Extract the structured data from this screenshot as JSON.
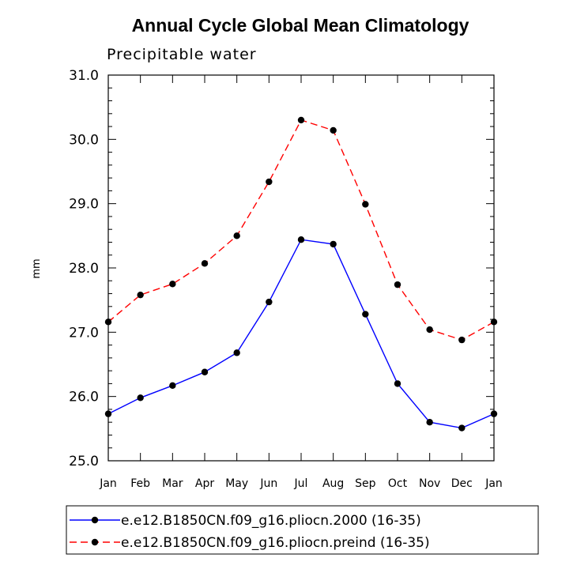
{
  "chart_data": {
    "type": "line",
    "title": "Annual Cycle Global Mean Climatology",
    "subtitle": "Precipitable water",
    "xlabel": "",
    "ylabel": "mm",
    "categories": [
      "Jan",
      "Feb",
      "Mar",
      "Apr",
      "May",
      "Jun",
      "Jul",
      "Aug",
      "Sep",
      "Oct",
      "Nov",
      "Dec",
      "Jan"
    ],
    "ylim": [
      25.0,
      31.0
    ],
    "yticks": [
      "25.0",
      "26.0",
      "27.0",
      "28.0",
      "29.0",
      "30.0",
      "31.0"
    ],
    "series": [
      {
        "name": "e.e12.B1850CN.f09_g16.pliocn.2000 (16-35)",
        "color": "#0000ff",
        "dash": "solid",
        "values": [
          25.73,
          25.98,
          26.17,
          26.38,
          26.68,
          27.47,
          28.44,
          28.37,
          27.28,
          26.2,
          25.6,
          25.51,
          25.73
        ]
      },
      {
        "name": "e.e12.B1850CN.f09_g16.pliocn.preind (16-35)",
        "color": "#ff0000",
        "dash": "dashed",
        "values": [
          27.16,
          27.58,
          27.75,
          28.07,
          28.5,
          29.34,
          30.3,
          30.14,
          28.99,
          27.74,
          27.04,
          26.88,
          27.16
        ]
      }
    ],
    "legend_position": "bottom"
  }
}
